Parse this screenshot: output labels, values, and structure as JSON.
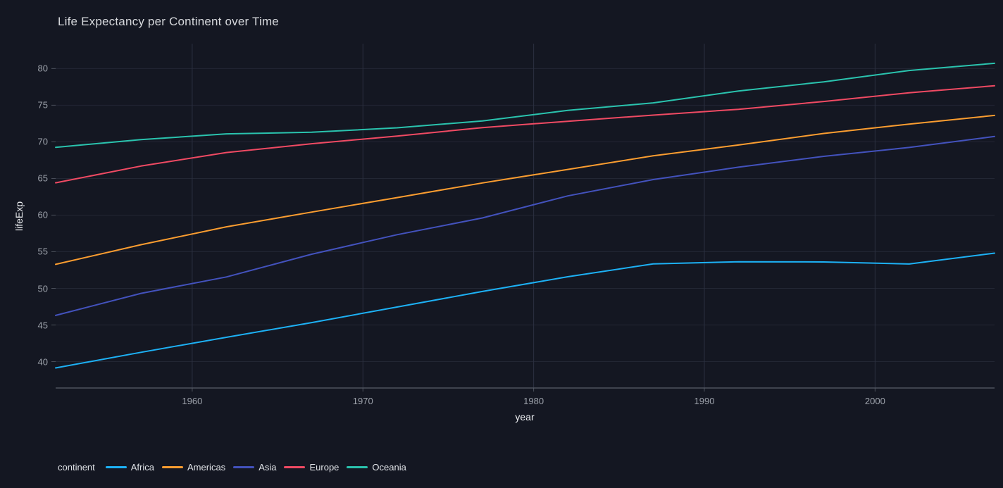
{
  "window": {
    "background_color": "#141722"
  },
  "theme": {
    "title_color": "#d6d8dc",
    "tick_label_color": "#9da2ab",
    "axis_title_color": "#edeff2",
    "legend_text_color": "#e0e3e7",
    "h_gridline_color": "#232734",
    "v_gridline_color": "#2b3040",
    "axis_line_color": "#595e69",
    "tick_mark_color": "#4c515c"
  },
  "chart_data": {
    "type": "line",
    "title": "Life Expectancy per Continent over Time",
    "xlabel": "year",
    "ylabel": "lifeExp",
    "legend_title": "continent",
    "legend_position": "bottom-left",
    "grid": true,
    "xlim": [
      1952,
      2007
    ],
    "ylim": [
      36.4,
      83.4
    ],
    "xticks": [
      1960,
      1970,
      1980,
      1990,
      2000
    ],
    "yticks": [
      40,
      45,
      50,
      55,
      60,
      65,
      70,
      75,
      80
    ],
    "x": [
      1952,
      1957,
      1962,
      1967,
      1972,
      1977,
      1982,
      1987,
      1992,
      1997,
      2002,
      2007
    ],
    "series": [
      {
        "name": "Africa",
        "color": "#1db1f5",
        "values": [
          39.14,
          41.27,
          43.32,
          45.33,
          47.45,
          49.58,
          51.59,
          53.34,
          53.63,
          53.6,
          53.33,
          54.81
        ]
      },
      {
        "name": "Americas",
        "color": "#fb9d30",
        "values": [
          53.28,
          55.96,
          58.4,
          60.41,
          62.39,
          64.39,
          66.23,
          68.09,
          69.57,
          71.15,
          72.42,
          73.61
        ]
      },
      {
        "name": "Asia",
        "color": "#4352bd",
        "values": [
          46.31,
          49.32,
          51.56,
          54.66,
          57.32,
          59.61,
          62.62,
          64.85,
          66.54,
          68.02,
          69.23,
          70.73
        ]
      },
      {
        "name": "Europe",
        "color": "#f04a63",
        "values": [
          64.41,
          66.7,
          68.54,
          69.74,
          70.78,
          71.94,
          72.81,
          73.64,
          74.44,
          75.51,
          76.7,
          77.65
        ]
      },
      {
        "name": "Oceania",
        "color": "#2ac3ae",
        "values": [
          69.25,
          70.3,
          71.09,
          71.31,
          71.91,
          72.86,
          74.29,
          75.32,
          76.94,
          78.19,
          79.74,
          80.72
        ]
      }
    ]
  }
}
